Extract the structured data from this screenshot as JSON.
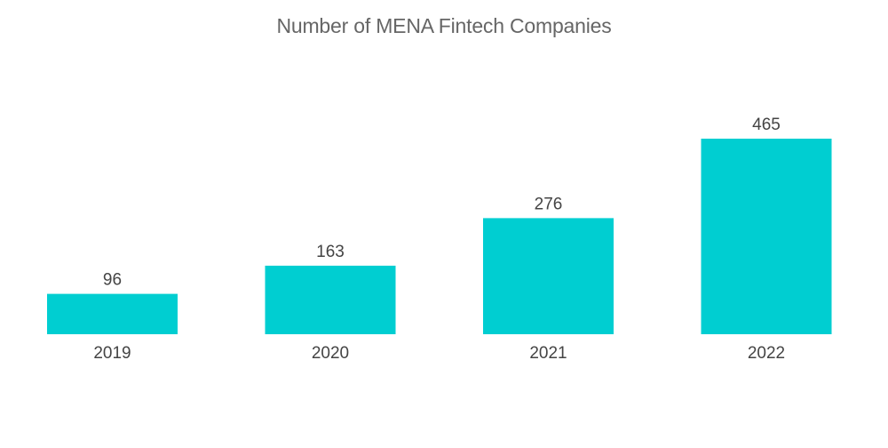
{
  "chart_data": {
    "type": "bar",
    "title": "Number of MENA Fintech Companies",
    "categories": [
      "2019",
      "2020",
      "2021",
      "2022"
    ],
    "values": [
      96,
      163,
      276,
      465
    ],
    "xlabel": "",
    "ylabel": "",
    "ylim": [
      0,
      465
    ],
    "grid": false,
    "legend": "none",
    "bar_color": "#00CED1",
    "data_labels": true
  }
}
